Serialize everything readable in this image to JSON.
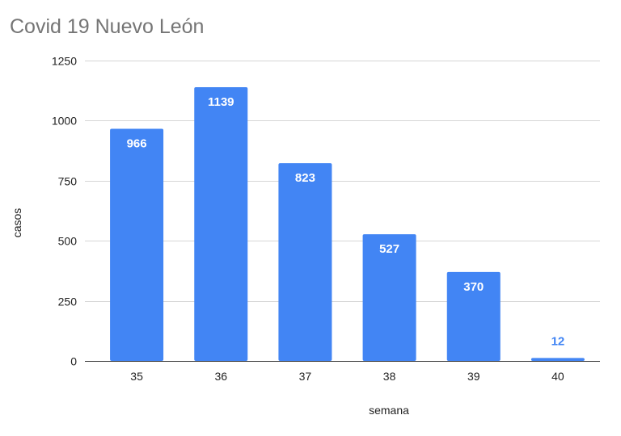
{
  "chart_data": {
    "type": "bar",
    "title": "Covid 19 Nuevo León",
    "xlabel": "semana",
    "ylabel": "casos",
    "categories": [
      "35",
      "36",
      "37",
      "38",
      "39",
      "40"
    ],
    "values": [
      966,
      1139,
      823,
      527,
      370,
      12
    ],
    "ylim": [
      0,
      1250
    ],
    "yticks": [
      "0",
      "250",
      "500",
      "750",
      "1000",
      "1250"
    ],
    "grid": true,
    "legend": "none",
    "colors": {
      "bar": "#4285f4",
      "label_inside": "#ffffff",
      "label_outside": "#4285f4"
    }
  }
}
